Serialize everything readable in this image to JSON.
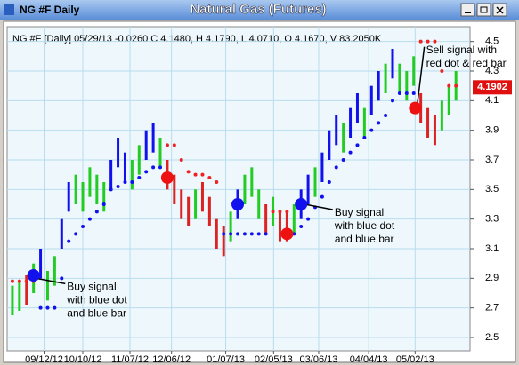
{
  "window_title": "NG #F Daily",
  "chart_data": {
    "type": "ohlc",
    "title": "Natural Gas (Futures)",
    "header": "NG #F [Daily] 05/29/13  -0.0260 C 4.1480, H 4.1790, L 4.0710, O 4.1670, V 83.2050K",
    "highs": [
      2.85,
      2.88,
      2.92,
      3.0,
      3.1,
      2.95,
      3.05,
      3.3,
      3.55,
      3.6,
      3.55,
      3.65,
      3.6,
      3.55,
      3.7,
      3.85,
      3.75,
      3.7,
      3.8,
      3.9,
      3.95,
      3.85,
      3.7,
      3.6,
      3.5,
      3.45,
      3.5,
      3.55,
      3.45,
      3.3,
      3.25,
      3.35,
      3.5,
      3.6,
      3.65,
      3.5,
      3.4,
      3.45,
      3.35,
      3.35,
      3.4,
      3.5,
      3.6,
      3.65,
      3.75,
      3.9,
      4.0,
      3.95,
      4.05,
      4.15,
      4.05,
      4.2,
      4.3,
      4.35,
      4.45,
      4.35,
      4.3,
      4.4,
      4.15,
      4.05,
      4.0,
      4.1,
      4.2,
      4.3
    ],
    "lows": [
      2.65,
      2.68,
      2.72,
      2.8,
      2.9,
      2.75,
      2.85,
      3.1,
      3.35,
      3.4,
      3.35,
      3.45,
      3.4,
      3.35,
      3.5,
      3.65,
      3.55,
      3.5,
      3.6,
      3.7,
      3.75,
      3.65,
      3.5,
      3.4,
      3.3,
      3.25,
      3.3,
      3.35,
      3.25,
      3.1,
      3.05,
      3.15,
      3.3,
      3.4,
      3.45,
      3.3,
      3.2,
      3.25,
      3.15,
      3.15,
      3.2,
      3.3,
      3.4,
      3.45,
      3.55,
      3.7,
      3.8,
      3.75,
      3.85,
      3.95,
      3.85,
      4.0,
      4.1,
      4.15,
      4.25,
      4.15,
      4.1,
      4.2,
      3.95,
      3.85,
      3.8,
      3.9,
      4.0,
      4.1
    ],
    "bar_colors": [
      "#22cc22",
      "#22cc22",
      "#dd2222",
      "#22cc22",
      "#1111ee",
      "#22cc22",
      "#22cc22",
      "#1111ee",
      "#1111ee",
      "#22cc22",
      "#22cc22",
      "#22cc22",
      "#22cc22",
      "#22cc22",
      "#1111ee",
      "#1111ee",
      "#1111ee",
      "#22cc22",
      "#22cc22",
      "#1111ee",
      "#1111ee",
      "#22cc22",
      "#dd2222",
      "#dd2222",
      "#dd2222",
      "#dd2222",
      "#22cc22",
      "#dd2222",
      "#dd2222",
      "#dd2222",
      "#dd2222",
      "#22cc22",
      "#1111ee",
      "#22cc22",
      "#22cc22",
      "#22cc22",
      "#dd2222",
      "#22cc22",
      "#dd2222",
      "#dd2222",
      "#22cc22",
      "#1111ee",
      "#1111ee",
      "#22cc22",
      "#1111ee",
      "#1111ee",
      "#1111ee",
      "#22cc22",
      "#1111ee",
      "#1111ee",
      "#22cc22",
      "#1111ee",
      "#1111ee",
      "#22cc22",
      "#1111ee",
      "#22cc22",
      "#22cc22",
      "#22cc22",
      "#dd2222",
      "#dd2222",
      "#dd2222",
      "#22cc22",
      "#22cc22",
      "#22cc22"
    ],
    "stops": [
      2.88,
      2.88,
      2.88,
      2.88,
      2.7,
      2.7,
      2.7,
      2.9,
      3.15,
      3.2,
      3.25,
      3.3,
      3.35,
      3.4,
      3.5,
      3.52,
      3.55,
      3.55,
      3.58,
      3.62,
      3.65,
      3.65,
      3.8,
      3.8,
      3.7,
      3.62,
      3.6,
      3.6,
      3.58,
      3.55,
      3.2,
      3.2,
      3.2,
      3.2,
      3.2,
      3.2,
      3.2,
      3.35,
      3.35,
      3.35,
      3.2,
      3.25,
      3.3,
      3.38,
      3.45,
      3.55,
      3.65,
      3.7,
      3.75,
      3.8,
      3.85,
      3.9,
      3.95,
      4.0,
      4.1,
      4.15,
      4.15,
      4.15,
      4.5,
      4.5,
      4.5,
      4.3,
      4.2,
      4.2
    ],
    "stop_colors": [
      "#ee2222",
      "#ee2222",
      "#ee2222",
      "#ee2222",
      "#1111ee",
      "#1111ee",
      "#1111ee",
      "#1111ee",
      "#1111ee",
      "#1111ee",
      "#1111ee",
      "#1111ee",
      "#1111ee",
      "#1111ee",
      "#1111ee",
      "#1111ee",
      "#1111ee",
      "#1111ee",
      "#1111ee",
      "#1111ee",
      "#1111ee",
      "#1111ee",
      "#ee2222",
      "#ee2222",
      "#ee2222",
      "#ee2222",
      "#ee2222",
      "#ee2222",
      "#ee2222",
      "#ee2222",
      "#1111ee",
      "#1111ee",
      "#1111ee",
      "#1111ee",
      "#1111ee",
      "#1111ee",
      "#1111ee",
      "#ee2222",
      "#ee2222",
      "#ee2222",
      "#1111ee",
      "#1111ee",
      "#1111ee",
      "#1111ee",
      "#1111ee",
      "#1111ee",
      "#1111ee",
      "#1111ee",
      "#1111ee",
      "#1111ee",
      "#1111ee",
      "#1111ee",
      "#1111ee",
      "#1111ee",
      "#1111ee",
      "#1111ee",
      "#1111ee",
      "#1111ee",
      "#ee2222",
      "#ee2222",
      "#ee2222",
      "#ee2222",
      "#ee2222",
      "#ee2222"
    ],
    "signals": [
      {
        "x": 3,
        "value": 2.92,
        "color": "#1111ee"
      },
      {
        "x": 22,
        "value": 3.58,
        "color": "#ee1111"
      },
      {
        "x": 32,
        "value": 3.4,
        "color": "#1111ee"
      },
      {
        "x": 39,
        "value": 3.2,
        "color": "#ee1111"
      },
      {
        "x": 41,
        "value": 3.4,
        "color": "#1111ee"
      },
      {
        "x": 57.2,
        "value": 4.05,
        "color": "#ee1111"
      }
    ],
    "annotations": [
      {
        "lines": [
          "Buy signal",
          "with blue dot",
          "and blue bar"
        ],
        "x": 7,
        "value": 2.84,
        "arrow_to": {
          "x": 3.4,
          "value": 2.9
        }
      },
      {
        "lines": [
          "Buy signal",
          "with blue dot",
          "and blue bar"
        ],
        "x": 45,
        "value": 3.34,
        "arrow_to": {
          "x": 41.5,
          "value": 3.4
        }
      },
      {
        "lines": [
          "Sell signal with",
          "red dot & red bar"
        ],
        "x": 58,
        "value": 4.44,
        "arrow_to": {
          "x": 57.5,
          "value": 4.07
        }
      }
    ],
    "last_price": {
      "value": 4.1902,
      "label": "4.1902"
    },
    "xlim": [
      -0.75,
      65
    ],
    "ylim": [
      2.41,
      4.6
    ],
    "yticks": [
      2.5,
      2.7,
      2.9,
      3.1,
      3.3,
      3.5,
      3.7,
      3.9,
      4.1,
      4.3,
      4.5
    ],
    "xticks": [
      {
        "value": 4.5,
        "label": "09/12/12"
      },
      {
        "value": 10,
        "label": "10/10/12"
      },
      {
        "value": 16.7,
        "label": "11/07/12"
      },
      {
        "value": 22.6,
        "label": "12/06/12"
      },
      {
        "value": 30.3,
        "label": "01/07/13"
      },
      {
        "value": 37.1,
        "label": "02/05/13"
      },
      {
        "value": 43.5,
        "label": "03/06/13"
      },
      {
        "value": 50.6,
        "label": "04/04/13"
      },
      {
        "value": 57.2,
        "label": "05/02/13"
      }
    ],
    "grid": true
  }
}
